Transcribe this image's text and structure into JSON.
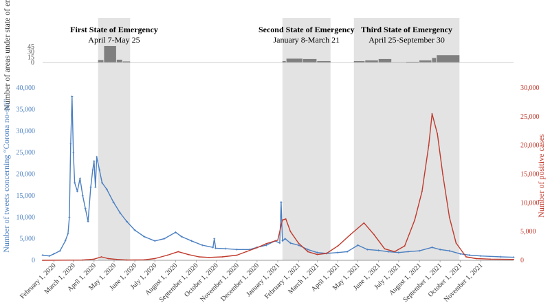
{
  "chart_data": {
    "type": "line",
    "bar_panel": {
      "ylabel": "Number of areas under state of emergency",
      "ticks": [
        "45",
        "30",
        "15",
        "0"
      ],
      "tick_values": [
        45,
        30,
        15,
        0
      ],
      "ylim": [
        0,
        45
      ],
      "segments": [
        {
          "start": "2020-04-07",
          "end": "2020-04-15",
          "value": 7
        },
        {
          "start": "2020-04-16",
          "end": "2020-05-04",
          "value": 47
        },
        {
          "start": "2020-05-05",
          "end": "2020-05-13",
          "value": 8
        },
        {
          "start": "2020-05-14",
          "end": "2020-05-25",
          "value": 3
        },
        {
          "start": "2021-01-08",
          "end": "2021-01-13",
          "value": 4
        },
        {
          "start": "2021-01-14",
          "end": "2021-02-07",
          "value": 11
        },
        {
          "start": "2021-02-08",
          "end": "2021-02-28",
          "value": 10
        },
        {
          "start": "2021-03-01",
          "end": "2021-03-21",
          "value": 4
        },
        {
          "start": "2021-04-25",
          "end": "2021-05-11",
          "value": 4
        },
        {
          "start": "2021-05-12",
          "end": "2021-05-31",
          "value": 6
        },
        {
          "start": "2021-06-01",
          "end": "2021-06-20",
          "value": 10
        },
        {
          "start": "2021-06-21",
          "end": "2021-07-11",
          "value": 1
        },
        {
          "start": "2021-07-12",
          "end": "2021-07-31",
          "value": 2
        },
        {
          "start": "2021-08-01",
          "end": "2021-08-19",
          "value": 6
        },
        {
          "start": "2021-08-20",
          "end": "2021-08-26",
          "value": 13
        },
        {
          "start": "2021-08-27",
          "end": "2021-09-30",
          "value": 21
        }
      ]
    },
    "emergencies": [
      {
        "title": "First State of Emergency",
        "subtitle": "April 7-May 25",
        "start": "2020-04-07",
        "end": "2020-05-25"
      },
      {
        "title": "Second State of Emergency",
        "subtitle": "January 8-March 21",
        "start": "2021-01-08",
        "end": "2021-03-21"
      },
      {
        "title": "Third State of Emergency",
        "subtitle": "April 25-September 30",
        "start": "2021-04-25",
        "end": "2021-09-30"
      }
    ],
    "x_range": [
      "2020-01-15",
      "2021-12-20"
    ],
    "x_ticks": [
      "February 1, 2020",
      "March 1, 2020",
      "April 1, 2020",
      "May 1, 2020",
      "June 1, 2020",
      "July 1, 2020",
      "August 1, 2020",
      "September 1, 2020",
      "October 1, 2020",
      "November 1, 2020",
      "December 1, 2020",
      "January 1, 2021",
      "February 1, 2021",
      "March 1, 2021",
      "April 1, 2021",
      "May 1, 2021",
      "June 1, 2021",
      "July 1, 2021",
      "August 1, 2021",
      "September 1, 2021",
      "October 1, 2021",
      "November 1, 2021"
    ],
    "x_tick_dates": [
      "2020-02-01",
      "2020-03-01",
      "2020-04-01",
      "2020-05-01",
      "2020-06-01",
      "2020-07-01",
      "2020-08-01",
      "2020-09-01",
      "2020-10-01",
      "2020-11-01",
      "2020-12-01",
      "2021-01-01",
      "2021-02-01",
      "2021-03-01",
      "2021-04-01",
      "2021-05-01",
      "2021-06-01",
      "2021-07-01",
      "2021-08-01",
      "2021-09-01",
      "2021-10-01",
      "2021-11-01"
    ],
    "left_axis": {
      "label": "Number of tweets concerning “Corona no-sei”",
      "ticks": [
        "0",
        "5,000",
        "10,000",
        "15,000",
        "20,000",
        "25,000",
        "30,000",
        "35,000",
        "40,000"
      ],
      "tick_values": [
        0,
        5000,
        10000,
        15000,
        20000,
        25000,
        30000,
        35000,
        40000
      ],
      "ylim": [
        0,
        40000
      ],
      "color": "#4a7fc1"
    },
    "right_axis": {
      "label": "Number of positive cases",
      "ticks": [
        "0",
        "5,000",
        "10,000",
        "15,000",
        "20,000",
        "25,000",
        "30,000"
      ],
      "tick_values": [
        0,
        5000,
        10000,
        15000,
        20000,
        25000,
        30000
      ],
      "ylim": [
        0,
        30000
      ],
      "color": "#c0392b"
    },
    "series": [
      {
        "name": "Tweets concerning “Corona no-sei”",
        "axis": "left",
        "color": "#4a7fc1",
        "points": [
          [
            "2020-01-15",
            1200
          ],
          [
            "2020-01-25",
            1000
          ],
          [
            "2020-02-01",
            1500
          ],
          [
            "2020-02-10",
            2200
          ],
          [
            "2020-02-18",
            4500
          ],
          [
            "2020-02-22",
            6200
          ],
          [
            "2020-02-24",
            10000
          ],
          [
            "2020-02-26",
            27000
          ],
          [
            "2020-02-28",
            38000
          ],
          [
            "2020-03-01",
            25000
          ],
          [
            "2020-03-03",
            18000
          ],
          [
            "2020-03-07",
            16000
          ],
          [
            "2020-03-11",
            19000
          ],
          [
            "2020-03-15",
            15000
          ],
          [
            "2020-03-19",
            12000
          ],
          [
            "2020-03-23",
            9000
          ],
          [
            "2020-03-27",
            17000
          ],
          [
            "2020-03-30",
            21000
          ],
          [
            "2020-04-01",
            23000
          ],
          [
            "2020-04-03",
            17000
          ],
          [
            "2020-04-05",
            24000
          ],
          [
            "2020-04-09",
            21000
          ],
          [
            "2020-04-13",
            18000
          ],
          [
            "2020-04-20",
            16500
          ],
          [
            "2020-04-30",
            13500
          ],
          [
            "2020-05-10",
            11000
          ],
          [
            "2020-05-20",
            9000
          ],
          [
            "2020-06-01",
            7000
          ],
          [
            "2020-06-15",
            5500
          ],
          [
            "2020-07-01",
            4500
          ],
          [
            "2020-07-15",
            5000
          ],
          [
            "2020-08-01",
            6500
          ],
          [
            "2020-08-10",
            5500
          ],
          [
            "2020-08-25",
            4500
          ],
          [
            "2020-09-10",
            3500
          ],
          [
            "2020-09-26",
            3000
          ],
          [
            "2020-09-28",
            5000
          ],
          [
            "2020-09-30",
            2800
          ],
          [
            "2020-10-15",
            2700
          ],
          [
            "2020-11-01",
            2500
          ],
          [
            "2020-11-20",
            2500
          ],
          [
            "2020-12-01",
            3000
          ],
          [
            "2020-12-15",
            3500
          ],
          [
            "2020-12-28",
            4500
          ],
          [
            "2021-01-04",
            4000
          ],
          [
            "2021-01-06",
            13500
          ],
          [
            "2021-01-08",
            4500
          ],
          [
            "2021-01-12",
            5000
          ],
          [
            "2021-01-20",
            4000
          ],
          [
            "2021-02-01",
            3500
          ],
          [
            "2021-02-15",
            2500
          ],
          [
            "2021-03-01",
            1800
          ],
          [
            "2021-03-15",
            1600
          ],
          [
            "2021-04-01",
            1800
          ],
          [
            "2021-04-15",
            2000
          ],
          [
            "2021-05-01",
            3500
          ],
          [
            "2021-05-15",
            2500
          ],
          [
            "2021-06-01",
            2300
          ],
          [
            "2021-06-15",
            2000
          ],
          [
            "2021-07-01",
            1800
          ],
          [
            "2021-07-15",
            2000
          ],
          [
            "2021-08-01",
            2200
          ],
          [
            "2021-08-20",
            3000
          ],
          [
            "2021-09-01",
            2500
          ],
          [
            "2021-09-15",
            2200
          ],
          [
            "2021-10-01",
            1500
          ],
          [
            "2021-10-15",
            1200
          ],
          [
            "2021-11-01",
            1000
          ],
          [
            "2021-12-01",
            800
          ],
          [
            "2021-12-20",
            700
          ]
        ]
      },
      {
        "name": "Positive cases",
        "axis": "right",
        "color": "#c0392b",
        "points": [
          [
            "2020-01-15",
            0
          ],
          [
            "2020-03-15",
            50
          ],
          [
            "2020-04-01",
            200
          ],
          [
            "2020-04-12",
            600
          ],
          [
            "2020-04-22",
            300
          ],
          [
            "2020-05-05",
            150
          ],
          [
            "2020-05-20",
            50
          ],
          [
            "2020-06-15",
            80
          ],
          [
            "2020-07-01",
            300
          ],
          [
            "2020-07-20",
            900
          ],
          [
            "2020-08-05",
            1500
          ],
          [
            "2020-08-20",
            1000
          ],
          [
            "2020-09-05",
            600
          ],
          [
            "2020-09-20",
            500
          ],
          [
            "2020-10-10",
            600
          ],
          [
            "2020-11-01",
            900
          ],
          [
            "2020-11-15",
            1500
          ],
          [
            "2020-12-01",
            2200
          ],
          [
            "2020-12-15",
            2900
          ],
          [
            "2021-01-01",
            3500
          ],
          [
            "2021-01-08",
            7000
          ],
          [
            "2021-01-13",
            7200
          ],
          [
            "2021-01-20",
            5000
          ],
          [
            "2021-02-01",
            3000
          ],
          [
            "2021-02-15",
            1500
          ],
          [
            "2021-03-01",
            1000
          ],
          [
            "2021-03-15",
            1200
          ],
          [
            "2021-04-01",
            2500
          ],
          [
            "2021-04-20",
            4500
          ],
          [
            "2021-05-10",
            6500
          ],
          [
            "2021-05-25",
            4500
          ],
          [
            "2021-06-10",
            2000
          ],
          [
            "2021-06-25",
            1500
          ],
          [
            "2021-07-10",
            2500
          ],
          [
            "2021-07-25",
            7000
          ],
          [
            "2021-08-05",
            12000
          ],
          [
            "2021-08-15",
            20000
          ],
          [
            "2021-08-20",
            25500
          ],
          [
            "2021-08-28",
            22000
          ],
          [
            "2021-09-05",
            15000
          ],
          [
            "2021-09-15",
            7500
          ],
          [
            "2021-09-25",
            3000
          ],
          [
            "2021-10-10",
            600
          ],
          [
            "2021-10-25",
            300
          ],
          [
            "2021-11-15",
            200
          ],
          [
            "2021-12-20",
            150
          ]
        ]
      }
    ]
  }
}
